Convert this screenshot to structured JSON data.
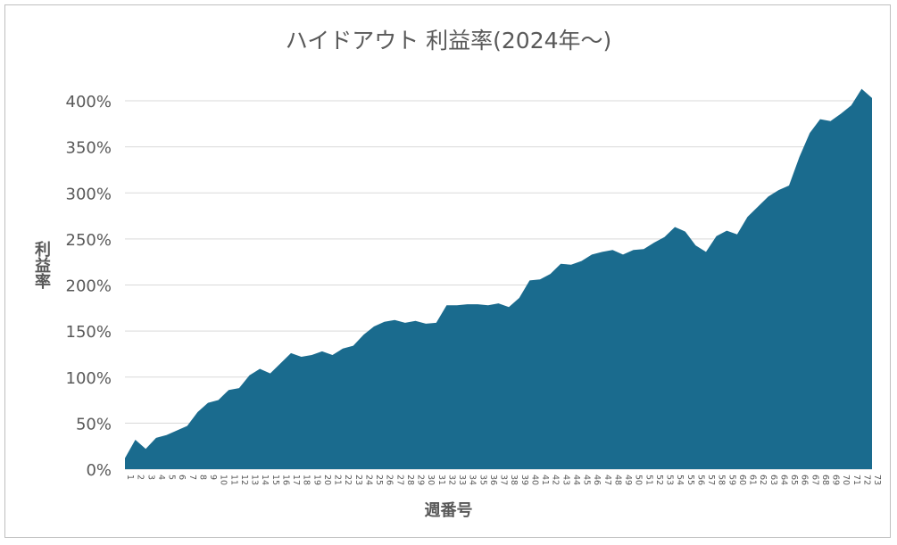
{
  "chart_data": {
    "type": "area",
    "title": "ハイドアウト 利益率(2024年～)",
    "xlabel": "週番号",
    "ylabel": "利益率",
    "ylim": [
      0,
      400
    ],
    "y_ticks": [
      "0%",
      "50%",
      "100%",
      "150%",
      "200%",
      "250%",
      "300%",
      "350%",
      "400%"
    ],
    "grid": true,
    "legend": "none",
    "fill_color": "#1a6b8e",
    "categories": [
      1,
      2,
      3,
      4,
      5,
      6,
      7,
      8,
      9,
      10,
      11,
      12,
      13,
      14,
      15,
      16,
      17,
      18,
      19,
      20,
      21,
      22,
      23,
      24,
      25,
      26,
      27,
      28,
      29,
      30,
      31,
      32,
      33,
      34,
      35,
      36,
      37,
      38,
      39,
      40,
      41,
      42,
      43,
      44,
      45,
      46,
      47,
      48,
      49,
      50,
      51,
      52,
      53,
      54,
      55,
      56,
      57,
      58,
      59,
      60,
      61,
      62,
      63,
      64,
      65,
      66,
      67,
      68,
      69,
      70,
      71,
      72,
      73
    ],
    "series": [
      {
        "values": [
          12,
          32,
          22,
          34,
          37,
          42,
          47,
          62,
          72,
          75,
          86,
          88,
          102,
          109,
          104,
          115,
          126,
          122,
          124,
          128,
          124,
          131,
          134,
          146,
          155,
          160,
          162,
          159,
          161,
          158,
          159,
          178,
          178,
          179,
          179,
          178,
          180,
          176,
          186,
          205,
          206,
          212,
          223,
          222,
          226,
          233,
          236,
          238,
          233,
          238,
          239,
          246,
          252,
          263,
          258,
          243,
          236,
          253,
          259,
          255,
          274,
          285,
          296,
          303,
          308,
          339,
          365,
          380,
          378,
          386,
          395,
          413,
          403
        ]
      }
    ]
  }
}
